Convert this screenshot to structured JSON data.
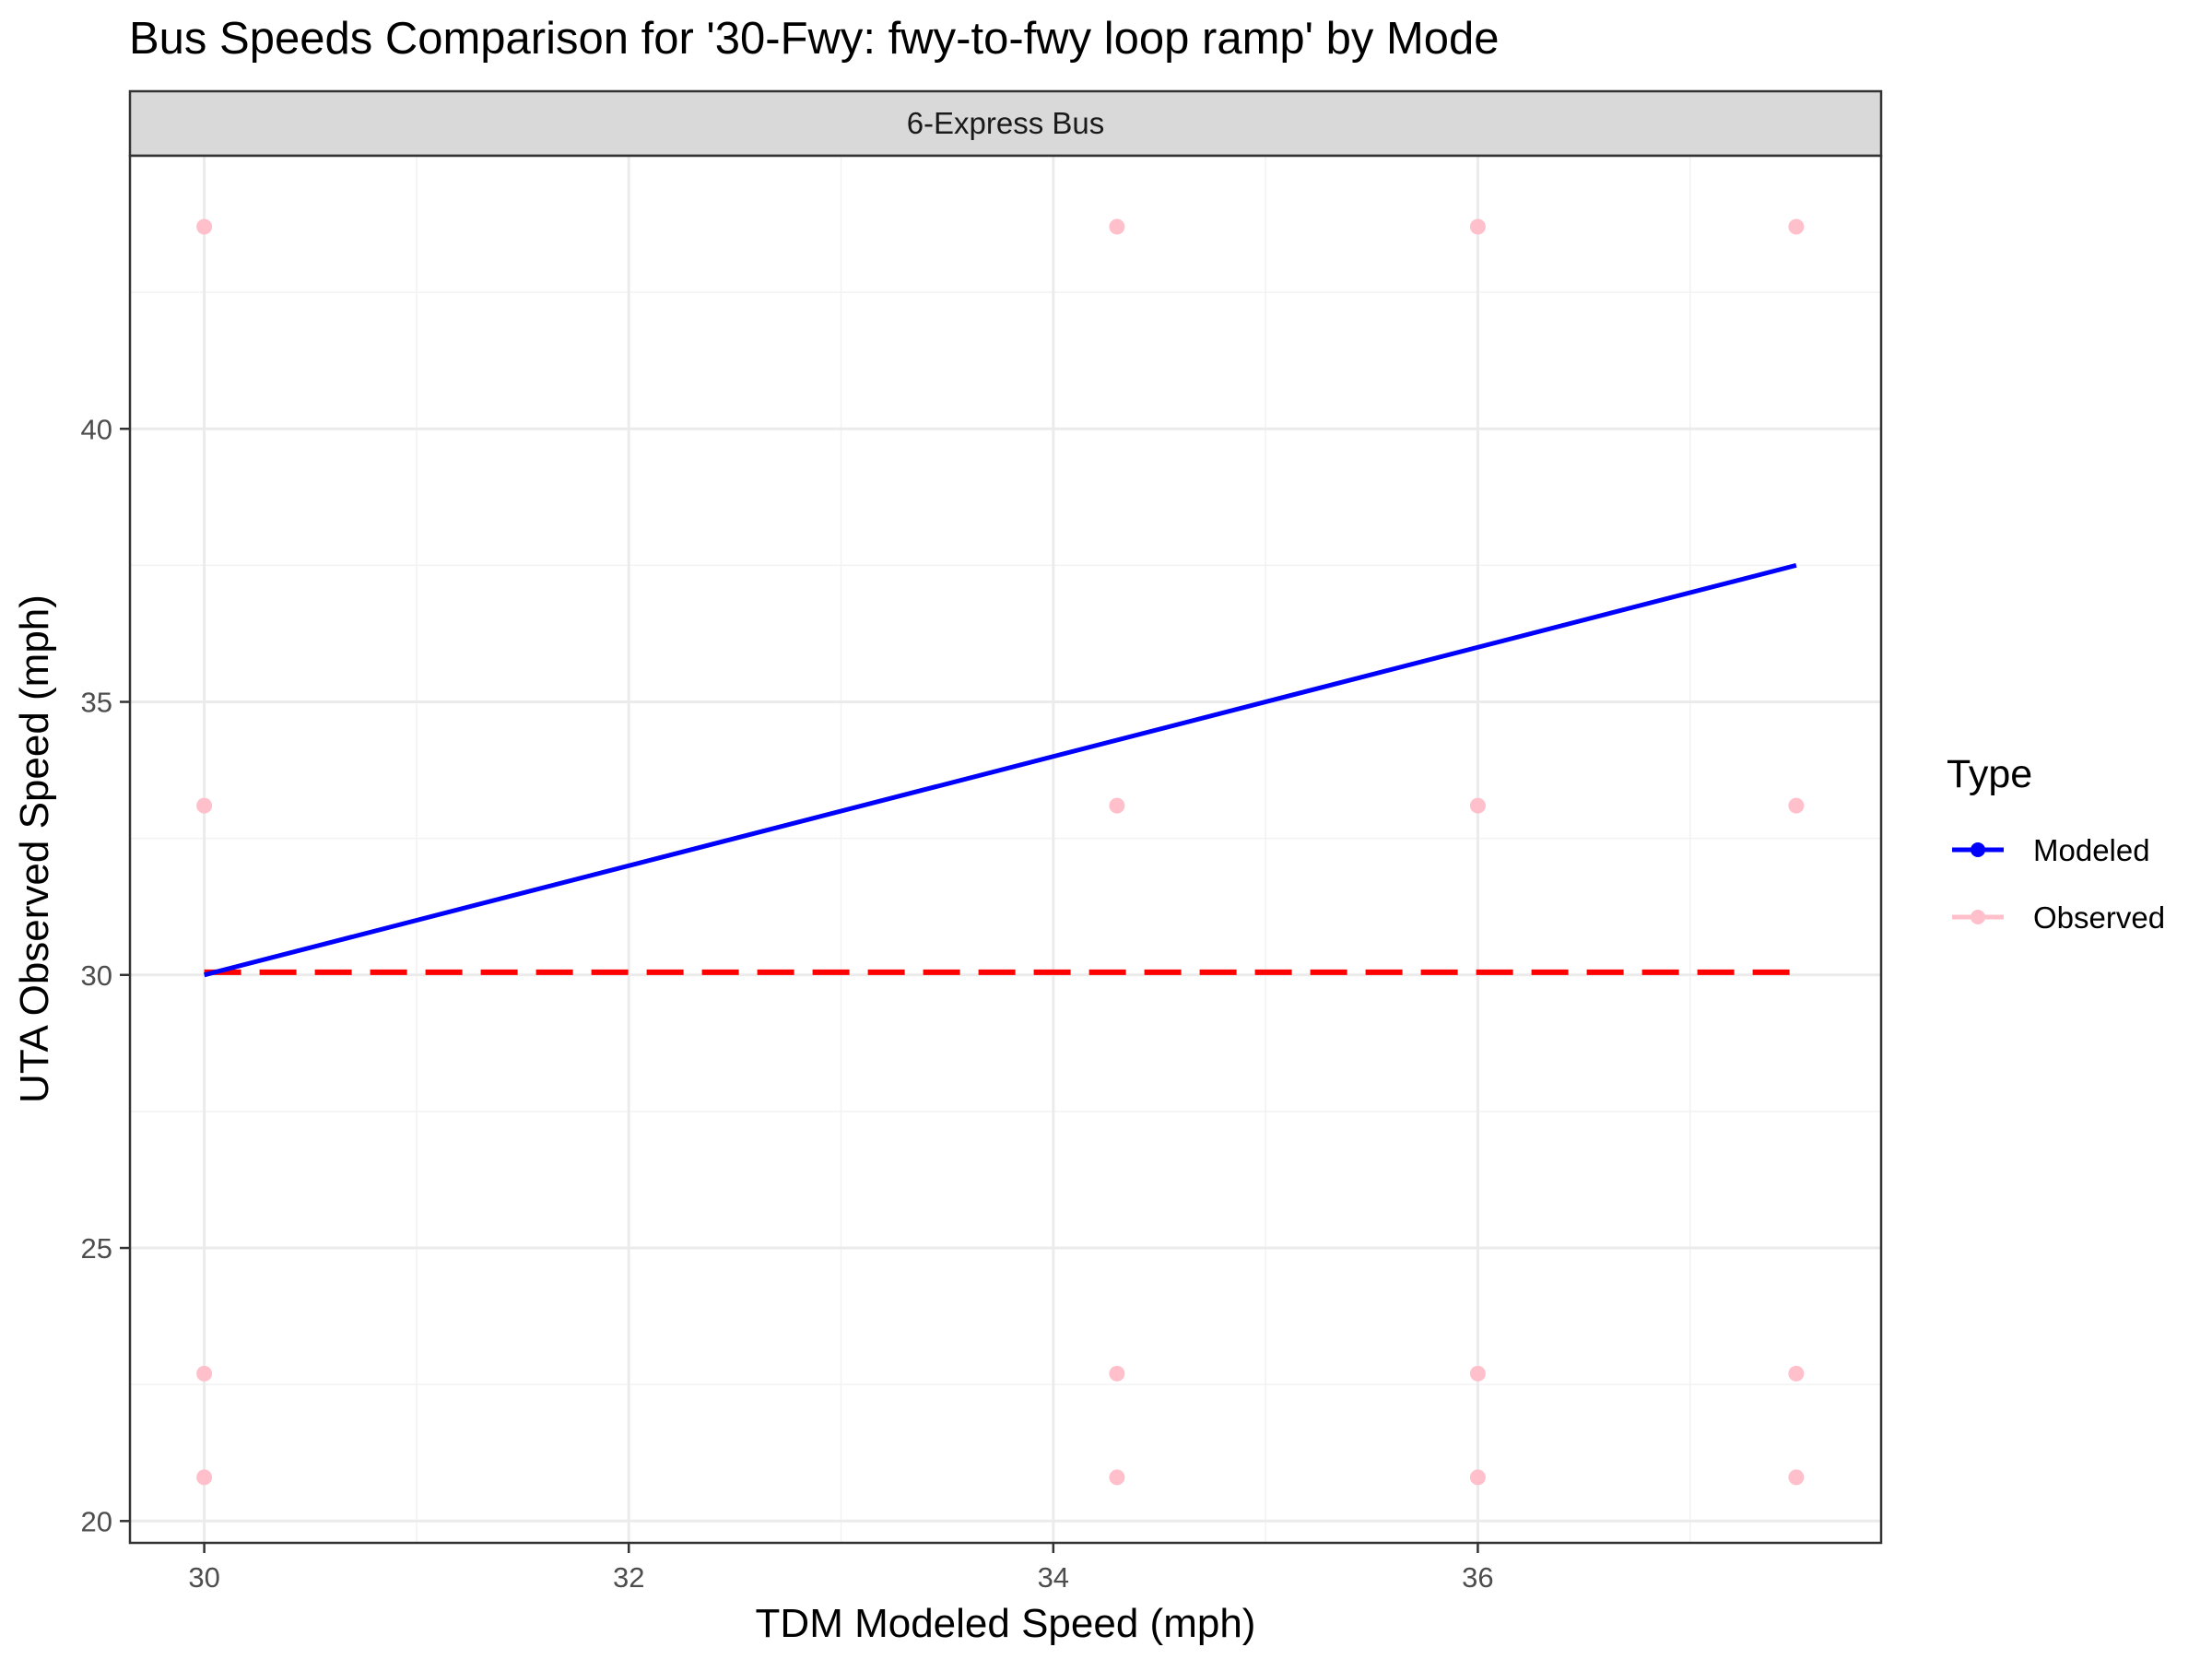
{
  "chart_data": {
    "type": "scatter",
    "title": "Bus Speeds Comparison for '30-Fwy: fwy-to-fwy loop ramp' by Mode",
    "facet_label": "6-Express Bus",
    "xlabel": "TDM Modeled Speed (mph)",
    "ylabel": "UTA Observed Speed (mph)",
    "xlim": [
      29.65,
      37.9
    ],
    "ylim": [
      19.6,
      45.0
    ],
    "xticks": [
      30,
      32,
      34,
      36
    ],
    "yticks": [
      20,
      25,
      30,
      35,
      40
    ],
    "grid": true,
    "legend": {
      "title": "Type",
      "position": "right",
      "entries": [
        {
          "label": "Modeled",
          "color": "#0000ff"
        },
        {
          "label": "Observed",
          "color": "#ffc0cb"
        }
      ]
    },
    "series": [
      {
        "name": "Modeled",
        "type": "line",
        "color": "#0000ff",
        "x": [
          30,
          37.5
        ],
        "y": [
          30,
          37.5
        ]
      },
      {
        "name": "Observed",
        "type": "scatter",
        "color": "#ffc0cb",
        "points": [
          [
            30,
            43.7
          ],
          [
            30,
            33.1
          ],
          [
            30,
            22.7
          ],
          [
            30,
            20.8
          ],
          [
            34.3,
            43.7
          ],
          [
            34.3,
            33.1
          ],
          [
            34.3,
            22.7
          ],
          [
            34.3,
            20.8
          ],
          [
            36.0,
            43.7
          ],
          [
            36.0,
            33.1
          ],
          [
            36.0,
            22.7
          ],
          [
            36.0,
            20.8
          ],
          [
            37.5,
            43.7
          ],
          [
            37.5,
            33.1
          ],
          [
            37.5,
            22.7
          ],
          [
            37.5,
            20.8
          ]
        ]
      }
    ],
    "reference_line": {
      "style": "dashed",
      "color": "#ff0000",
      "x": [
        30,
        37.5
      ],
      "y": [
        30.05,
        30.05
      ]
    }
  }
}
